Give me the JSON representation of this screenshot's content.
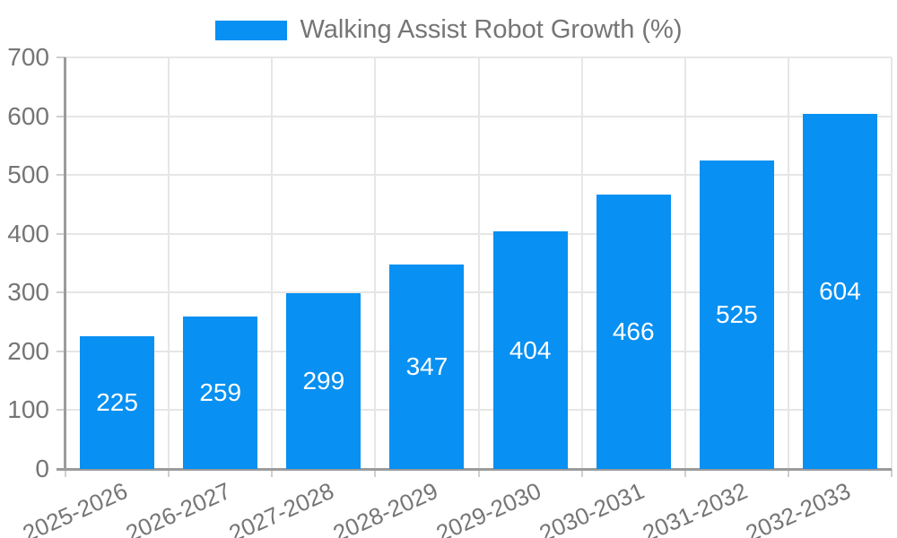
{
  "legend": {
    "label": "Walking Assist Robot Growth (%)"
  },
  "colors": {
    "bar": "#0890f2",
    "bar_label": "#ffffff",
    "text": "#757575",
    "grid": "#e6e6e6",
    "tick": "#cfcfcf",
    "axis": "#9b9b9b",
    "background": "#ffffff"
  },
  "chart_data": {
    "type": "bar",
    "title": "Walking Assist Robot Growth (%)",
    "series_name": "Walking Assist Robot Growth (%)",
    "categories": [
      "2025-2026",
      "2026-2027",
      "2027-2028",
      "2028-2029",
      "2029-2030",
      "2030-2031",
      "2031-2032",
      "2032-2033"
    ],
    "values": [
      225,
      259,
      299,
      347,
      404,
      466,
      525,
      604
    ],
    "xlabel": "",
    "ylabel": "",
    "ylim": [
      0,
      700
    ],
    "yticks": [
      0,
      100,
      200,
      300,
      400,
      500,
      600,
      700
    ],
    "grid": true,
    "legend_position": "top-center",
    "value_labels": "inside-center",
    "x_tick_rotation_deg": 24
  }
}
